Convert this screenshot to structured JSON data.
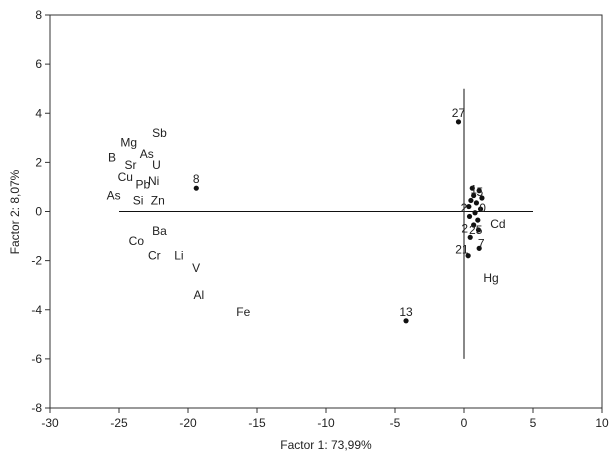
{
  "chart_data": {
    "type": "scatter",
    "xlabel": "Factor 1: 73,99%",
    "ylabel": "Factor 2: 8,07%",
    "xlim": [
      -30,
      10
    ],
    "ylim": [
      -8,
      8
    ],
    "xticks": [
      -30,
      -25,
      -20,
      -15,
      -10,
      -5,
      0,
      5,
      10
    ],
    "yticks": [
      -8,
      -6,
      -4,
      -2,
      0,
      2,
      4,
      6,
      8
    ],
    "grid": false,
    "reference_lines": {
      "horizontal": {
        "y": 0,
        "x_from": -25,
        "x_to": 5
      },
      "vertical": {
        "x": 0,
        "y_from": -6,
        "y_to": 5
      }
    },
    "variable_labels": [
      {
        "text": "Sb",
        "x": -22.6,
        "y": 3.2
      },
      {
        "text": "Mg",
        "x": -24.9,
        "y": 2.8
      },
      {
        "text": "As",
        "x": -23.5,
        "y": 2.35
      },
      {
        "text": "B",
        "x": -25.8,
        "y": 2.2
      },
      {
        "text": "Sr",
        "x": -24.6,
        "y": 1.9
      },
      {
        "text": "U",
        "x": -22.6,
        "y": 1.9
      },
      {
        "text": "Cu",
        "x": -25.1,
        "y": 1.4
      },
      {
        "text": "Ni",
        "x": -22.9,
        "y": 1.25
      },
      {
        "text": "Pb",
        "x": -23.8,
        "y": 1.1
      },
      {
        "text": "As",
        "x": -25.9,
        "y": 0.65
      },
      {
        "text": "Si",
        "x": -24.0,
        "y": 0.45
      },
      {
        "text": "Zn",
        "x": -22.7,
        "y": 0.45
      },
      {
        "text": "Ba",
        "x": -22.6,
        "y": -0.8
      },
      {
        "text": "Co",
        "x": -24.3,
        "y": -1.2
      },
      {
        "text": "Cr",
        "x": -22.9,
        "y": -1.8
      },
      {
        "text": "Li",
        "x": -21.0,
        "y": -1.8
      },
      {
        "text": "V",
        "x": -19.7,
        "y": -2.3
      },
      {
        "text": "Al",
        "x": -19.6,
        "y": -3.4
      },
      {
        "text": "Fe",
        "x": -16.5,
        "y": -4.1
      },
      {
        "text": "Cd",
        "x": 1.9,
        "y": -0.5
      },
      {
        "text": "Hg",
        "x": 1.4,
        "y": -2.7
      }
    ],
    "points": [
      {
        "label": "27",
        "x": -0.4,
        "y": 3.65
      },
      {
        "label": "8",
        "x": -19.4,
        "y": 0.95
      },
      {
        "label": "13",
        "x": -4.2,
        "y": -4.45
      },
      {
        "label": "",
        "x": 0.6,
        "y": 0.95
      },
      {
        "label": "",
        "x": 1.1,
        "y": 0.85
      },
      {
        "label": "",
        "x": 0.7,
        "y": 0.65
      },
      {
        "label": "",
        "x": 1.3,
        "y": 0.55
      },
      {
        "label": "",
        "x": 0.5,
        "y": 0.45
      },
      {
        "label": "",
        "x": 0.9,
        "y": 0.35
      },
      {
        "label": "",
        "x": 0.35,
        "y": 0.2
      },
      {
        "label": "",
        "x": 1.2,
        "y": 0.1
      },
      {
        "label": "",
        "x": 0.8,
        "y": -0.05
      },
      {
        "label": "",
        "x": 0.4,
        "y": -0.2
      },
      {
        "label": "",
        "x": 1.0,
        "y": -0.35
      },
      {
        "label": "",
        "x": 0.7,
        "y": -0.55
      },
      {
        "label": "",
        "x": 1.05,
        "y": -0.75
      },
      {
        "label": "",
        "x": 0.45,
        "y": -1.05
      },
      {
        "label": "",
        "x": 1.1,
        "y": -1.5
      },
      {
        "label": "",
        "x": 0.3,
        "y": -1.8
      }
    ],
    "point_labels": [
      {
        "text": "1",
        "x": 0.7,
        "y": 0.9
      },
      {
        "text": "5",
        "x": 1.15,
        "y": 0.8
      },
      {
        "text": "2",
        "x": 0.0,
        "y": 0.15
      },
      {
        "text": "0",
        "x": 1.35,
        "y": 0.15
      },
      {
        "text": "2",
        "x": 0.05,
        "y": -0.7
      },
      {
        "text": "25",
        "x": 0.85,
        "y": -0.75
      },
      {
        "text": "21",
        "x": -0.15,
        "y": -1.55
      },
      {
        "text": "7",
        "x": 1.25,
        "y": -1.3
      }
    ]
  }
}
